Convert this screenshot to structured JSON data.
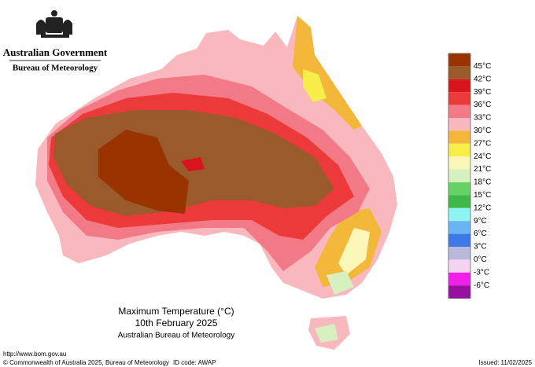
{
  "header": {
    "government": "Australian Government",
    "agency": "Bureau of Meteorology"
  },
  "title": {
    "line1": "Maximum Temperature (°C)",
    "line2": "10th February 2025",
    "line3": "Australian Bureau of Meteorology"
  },
  "legend": {
    "colors": [
      "#993300",
      "#9b5a2c",
      "#d8141c",
      "#ec3a3a",
      "#f27a86",
      "#f8b8bd",
      "#f3b83a",
      "#f7ee4a",
      "#fbf7b8",
      "#d6f0c0",
      "#66d266",
      "#3fb84a",
      "#8ef4f4",
      "#6ab4f4",
      "#3c78e6",
      "#b8b8d8",
      "#f4d4f0",
      "#f020e8",
      "#9810a0"
    ],
    "labels": [
      "45°C",
      "42°C",
      "39°C",
      "36°C",
      "33°C",
      "30°C",
      "27°C",
      "24°C",
      "21°C",
      "18°C",
      "15°C",
      "12°C",
      "9°C",
      "6°C",
      "3°C",
      "0°C",
      "-3°C",
      "-6°C"
    ]
  },
  "footer": {
    "url": "http://www.bom.gov.au",
    "copyright": "© Commonwealth of Australia 2025, Bureau of Meteorology",
    "id_code": "ID code: AWAP",
    "issued": "Issued: 11/02/2025"
  }
}
